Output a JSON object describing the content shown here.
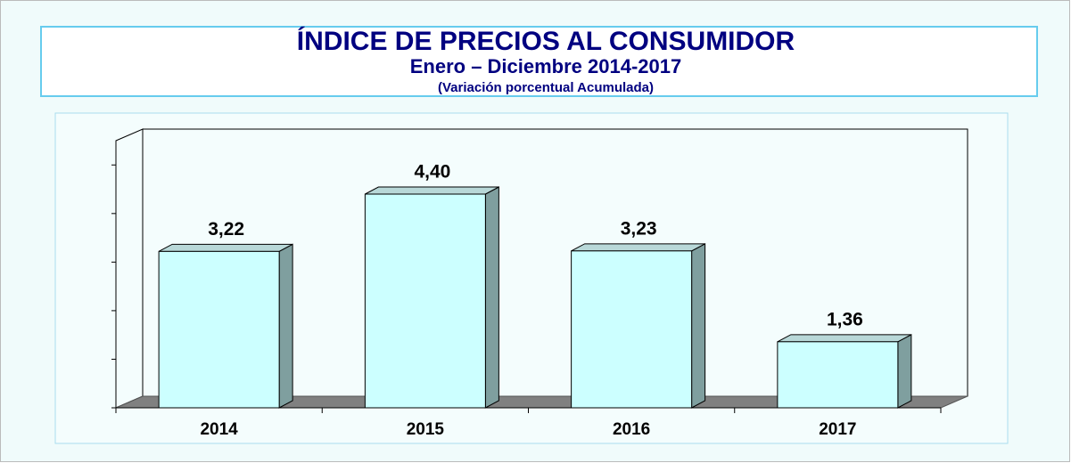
{
  "chart_data": {
    "type": "bar3d",
    "title": "ÍNDICE DE PRECIOS AL CONSUMIDOR",
    "subtitle": "Enero – Diciembre 2014-2017",
    "note": "(Variación porcentual Acumulada)",
    "categories": [
      "2014",
      "2015",
      "2016",
      "2017"
    ],
    "values": [
      3.22,
      4.4,
      3.23,
      1.36
    ],
    "value_labels": [
      "3,22",
      "4,40",
      "3,23",
      "1,36"
    ],
    "color": "#ccffff",
    "ylim": [
      0,
      5.5
    ],
    "yticks": [
      0,
      1,
      2,
      3,
      4,
      5
    ]
  }
}
